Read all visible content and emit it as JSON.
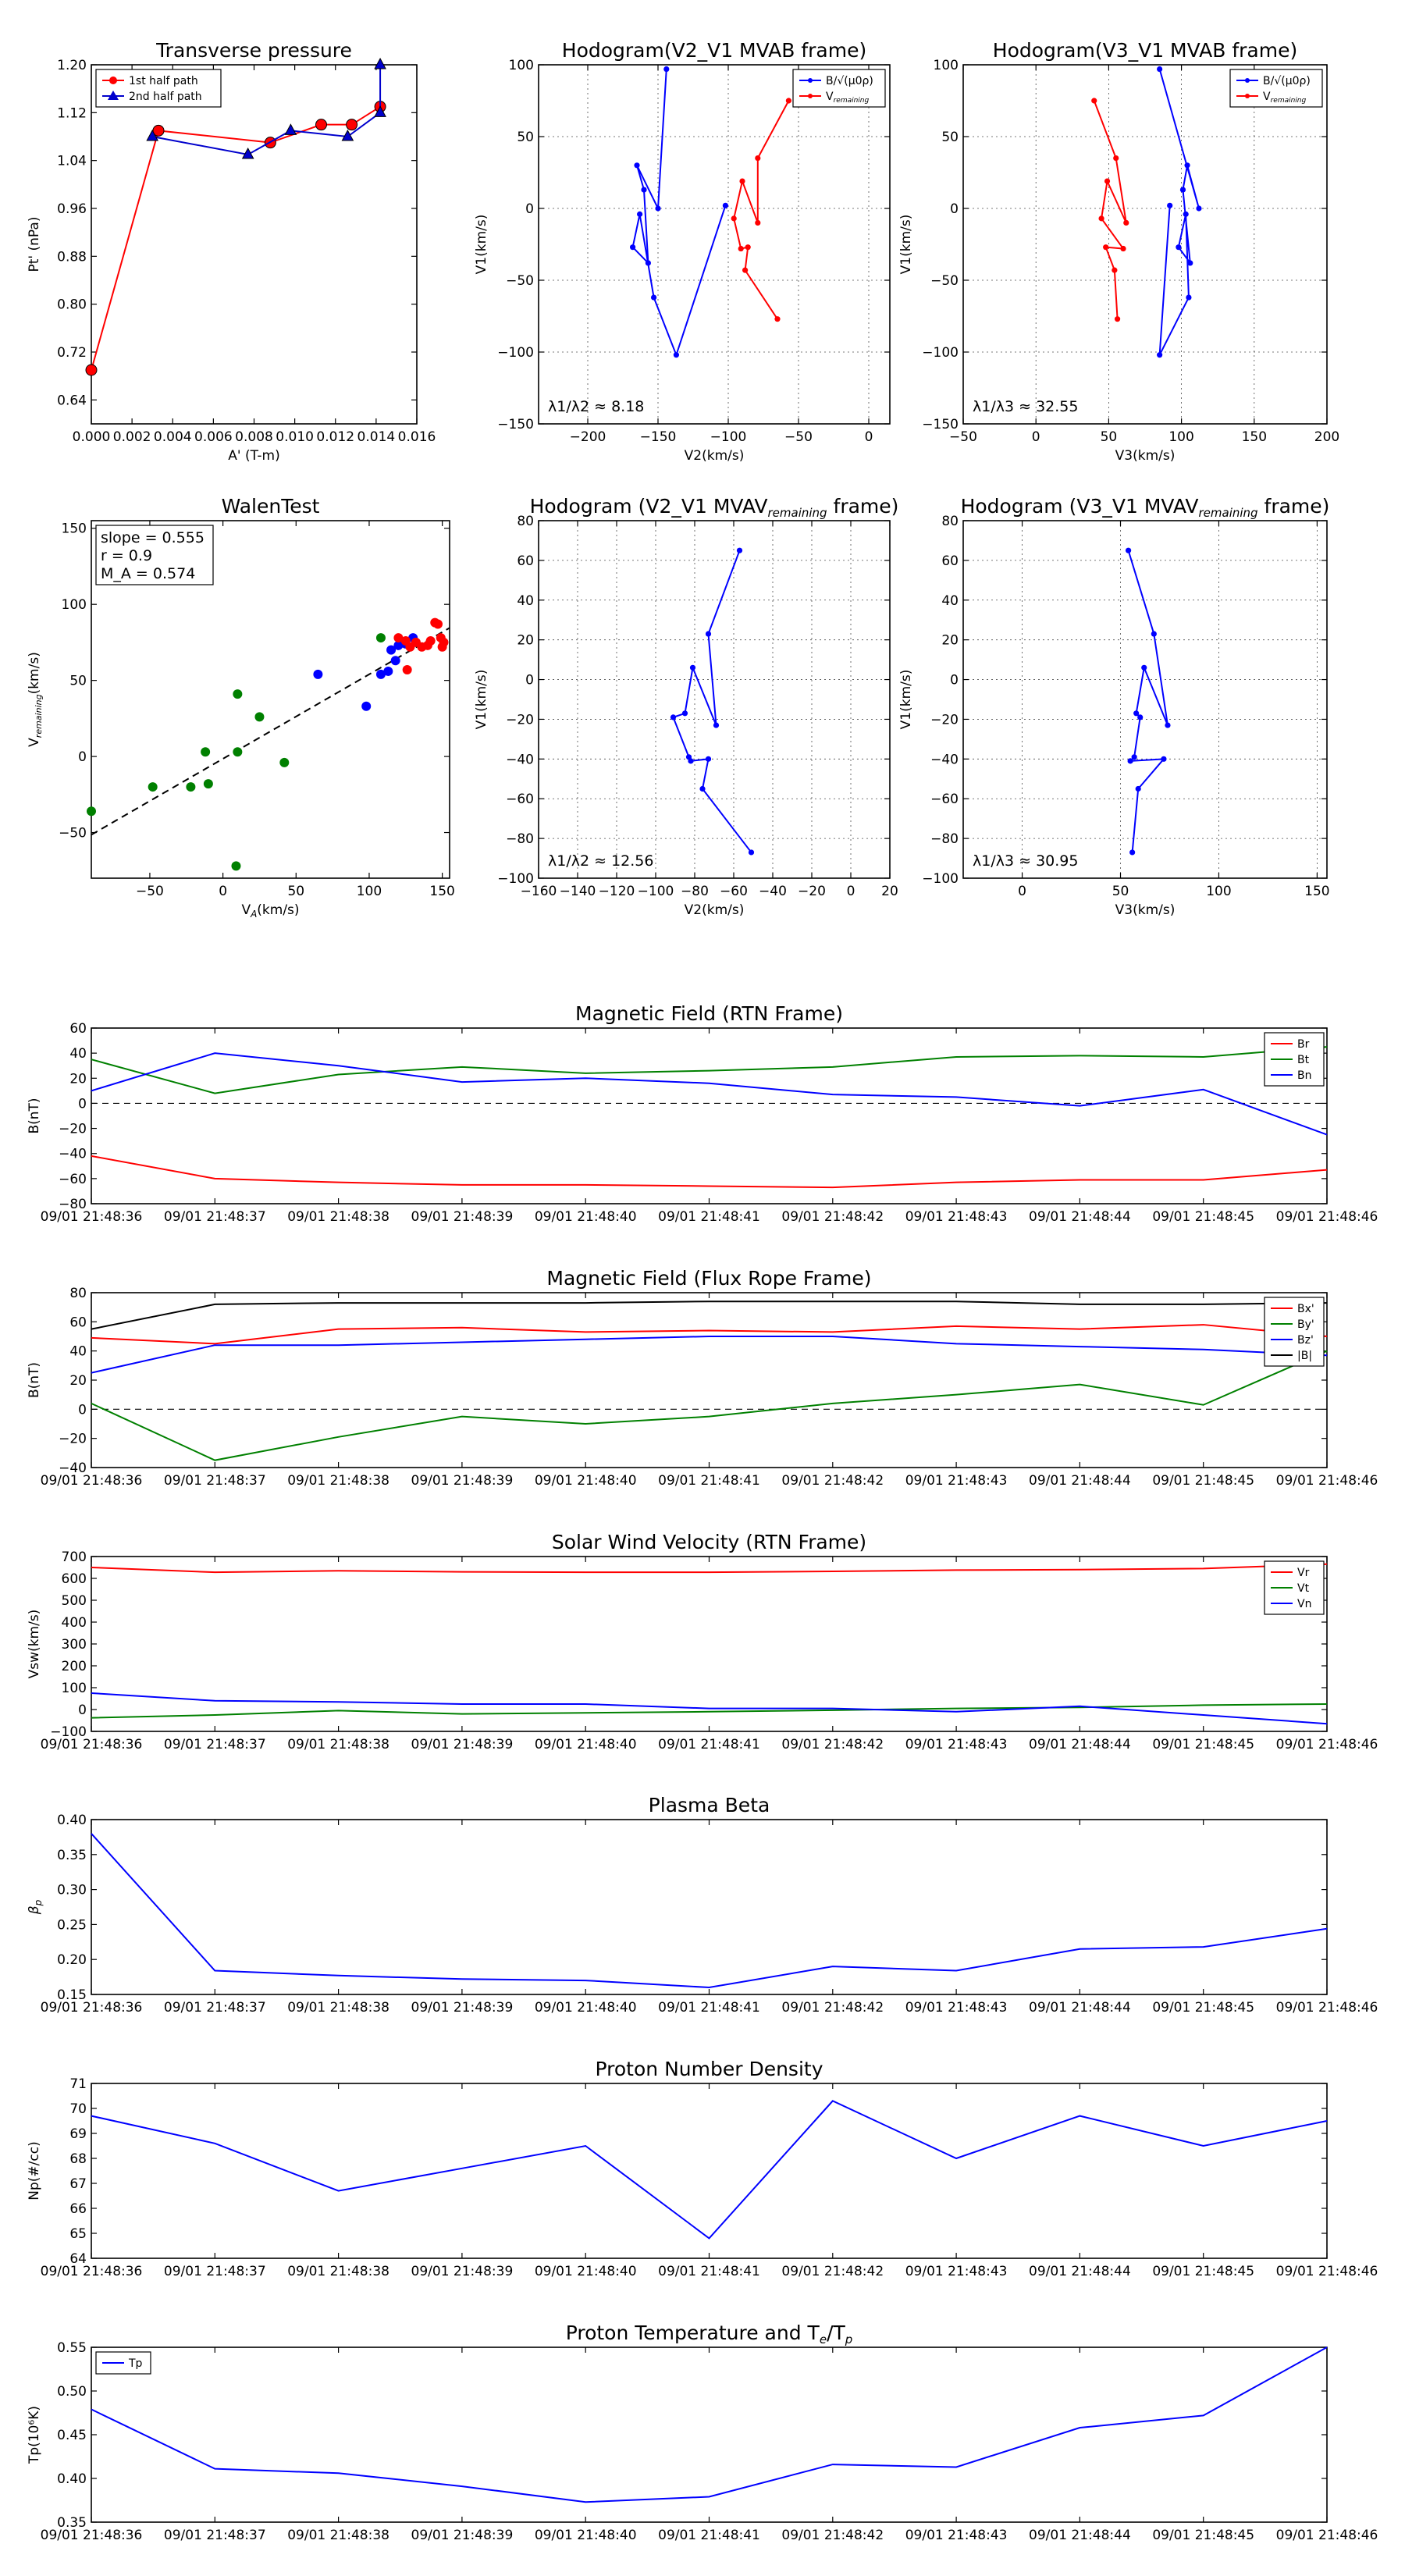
{
  "chart_data": [
    {
      "type": "line",
      "panel_id": "transverse",
      "title": "Transverse pressure",
      "xlabel": "A' (T-m)",
      "ylabel": "Pt' (nPa)",
      "xlim": [
        0,
        0.016
      ],
      "ylim": [
        0.6,
        1.2
      ],
      "xticks": [
        0,
        0.002,
        0.004,
        0.006,
        0.008,
        0.01,
        0.012,
        0.014,
        0.016
      ],
      "xtick_labels": [
        "0.000",
        "0.002",
        "0.004",
        "0.006",
        "0.008",
        "0.010",
        "0.012",
        "0.014",
        "0.016"
      ],
      "yticks": [
        0.64,
        0.72,
        0.8,
        0.88,
        0.96,
        1.04,
        1.12,
        1.2
      ],
      "ytick_labels": [
        "0.64",
        "0.72",
        "0.80",
        "0.88",
        "0.96",
        "1.04",
        "1.12",
        "1.20"
      ],
      "grid": false,
      "legend": "upper-left",
      "series": [
        {
          "name": "1st half path",
          "color": "#ff0000",
          "marker": "circle",
          "x": [
            0.0,
            0.0033,
            0.0088,
            0.0113,
            0.0128,
            0.0142
          ],
          "y": [
            0.69,
            1.09,
            1.07,
            1.1,
            1.1,
            1.13
          ]
        },
        {
          "name": "2nd half path",
          "color": "#0000cc",
          "marker": "triangle",
          "x": [
            0.0142,
            0.0142,
            0.0126,
            0.0098,
            0.0077,
            0.003
          ],
          "y": [
            1.2,
            1.12,
            1.08,
            1.09,
            1.05,
            1.08
          ]
        }
      ]
    },
    {
      "type": "line",
      "panel_id": "hodo_v2v1",
      "title": "Hodogram(V2_V1 MVAB frame)",
      "xlabel": "V2(km/s)",
      "ylabel": "V1(km/s)",
      "xlim": [
        -235,
        15
      ],
      "ylim": [
        -150,
        100
      ],
      "xticks": [
        -200,
        -150,
        -100,
        -50,
        0
      ],
      "xtick_labels": [
        "−200",
        "−150",
        "−100",
        "−50",
        "0"
      ],
      "yticks": [
        -150,
        -100,
        -50,
        0,
        50,
        100
      ],
      "ytick_labels": [
        "−150",
        "−100",
        "−50",
        "0",
        "50",
        "100"
      ],
      "grid": true,
      "legend": "upper-right",
      "annotation": "λ1/λ2 ≈ 8.18",
      "series": [
        {
          "name": "B/√(μ0ρ)",
          "color": "#0000ff",
          "x": [
            -144,
            -150,
            -165,
            -160,
            -157,
            -168,
            -163,
            -153,
            -137,
            -102
          ],
          "y": [
            97,
            0,
            30,
            13,
            -38,
            -27,
            -4,
            -62,
            -102,
            2
          ]
        },
        {
          "name": "V_remaining",
          "color": "#ff0000",
          "x": [
            -57,
            -79,
            -79,
            -90,
            -96,
            -91,
            -86,
            -88,
            -65
          ],
          "y": [
            75,
            35,
            -10,
            19,
            -7,
            -28,
            -27,
            -43,
            -77
          ]
        }
      ]
    },
    {
      "type": "line",
      "panel_id": "hodo_v3v1",
      "title": "Hodogram(V3_V1 MVAB frame)",
      "xlabel": "V3(km/s)",
      "ylabel": "V1(km/s)",
      "xlim": [
        -50,
        200
      ],
      "ylim": [
        -150,
        100
      ],
      "xticks": [
        -50,
        0,
        50,
        100,
        150,
        200
      ],
      "xtick_labels": [
        "−50",
        "0",
        "50",
        "100",
        "150",
        "200"
      ],
      "yticks": [
        -150,
        -100,
        -50,
        0,
        50,
        100
      ],
      "ytick_labels": [
        "−150",
        "−100",
        "−50",
        "0",
        "50",
        "100"
      ],
      "grid": true,
      "legend": "upper-right",
      "annotation": "λ1/λ3 ≈ 32.55",
      "series": [
        {
          "name": "B/√(μ0ρ)",
          "color": "#0000ff",
          "x": [
            85,
            112,
            104,
            101,
            106,
            98,
            103,
            105,
            85,
            92
          ],
          "y": [
            97,
            0,
            30,
            13,
            -38,
            -27,
            -4,
            -62,
            -102,
            2
          ]
        },
        {
          "name": "V_remaining",
          "color": "#ff0000",
          "x": [
            40,
            55,
            62,
            49,
            45,
            60,
            48,
            54,
            56
          ],
          "y": [
            75,
            35,
            -10,
            19,
            -7,
            -28,
            -27,
            -43,
            -77
          ]
        }
      ]
    },
    {
      "type": "scatter",
      "panel_id": "walen",
      "title": "WalenTest",
      "xlabel": "V_A(km/s)",
      "ylabel": "V_remaining(km/s)",
      "xlim": [
        -90,
        155
      ],
      "ylim": [
        -80,
        155
      ],
      "xticks": [
        -50,
        0,
        50,
        100,
        150
      ],
      "xtick_labels": [
        "−50",
        "0",
        "50",
        "100",
        "150"
      ],
      "yticks": [
        -50,
        0,
        50,
        100,
        150
      ],
      "ytick_labels": [
        "−50",
        "0",
        "50",
        "100",
        "150"
      ],
      "grid": false,
      "annotation_lines": [
        "slope = 0.555",
        "r = 0.9",
        "M_A = 0.574"
      ],
      "fit": {
        "slope": 0.555,
        "intercept": -1.5
      },
      "series": [
        {
          "name": "green",
          "color": "#008000",
          "x": [
            -90,
            -48,
            -22,
            -12,
            -10,
            10,
            10,
            25,
            42,
            9,
            108
          ],
          "y": [
            -36,
            -20,
            -20,
            3,
            -18,
            41,
            3,
            26,
            -4,
            -72,
            78
          ]
        },
        {
          "name": "blue",
          "color": "#0000ff",
          "x": [
            65,
            98,
            108,
            113,
            115,
            118,
            120,
            130,
            125
          ],
          "y": [
            54,
            33,
            54,
            56,
            70,
            63,
            73,
            78,
            74
          ]
        },
        {
          "name": "red",
          "color": "#ff0000",
          "x": [
            120,
            125,
            128,
            132,
            136,
            140,
            142,
            145,
            147,
            149,
            150,
            151,
            126
          ],
          "y": [
            78,
            76,
            72,
            75,
            72,
            73,
            76,
            88,
            87,
            78,
            72,
            75,
            57
          ]
        }
      ]
    },
    {
      "type": "line",
      "panel_id": "hodo_v2v1_rem",
      "title": "Hodogram (V2_V1 MVAV",
      "title_sub": "remaining",
      "title_tail": " frame)",
      "xlabel": "V2(km/s)",
      "ylabel": "V1(km/s)",
      "xlim": [
        -160,
        20
      ],
      "ylim": [
        -100,
        80
      ],
      "xticks": [
        -160,
        -140,
        -120,
        -100,
        -80,
        -60,
        -40,
        -20,
        0,
        20
      ],
      "xtick_labels": [
        "−160",
        "−140",
        "−120",
        "−100",
        "−80",
        "−60",
        "−40",
        "−20",
        "0",
        "20"
      ],
      "yticks": [
        -100,
        -80,
        -60,
        -40,
        -20,
        0,
        20,
        40,
        60,
        80
      ],
      "ytick_labels": [
        "−100",
        "−80",
        "−60",
        "−40",
        "−20",
        "0",
        "20",
        "40",
        "60",
        "80"
      ],
      "grid": true,
      "annotation": "λ1/λ2 ≈ 12.56",
      "series": [
        {
          "name": "",
          "color": "#0000ff",
          "x": [
            -57,
            -73,
            -69,
            -81,
            -85,
            -91,
            -83,
            -82,
            -73,
            -76,
            -51
          ],
          "y": [
            65,
            23,
            -23,
            6,
            -17,
            -19,
            -39,
            -41,
            -40,
            -55,
            -87
          ]
        }
      ]
    },
    {
      "type": "line",
      "panel_id": "hodo_v3v1_rem",
      "title": "Hodogram (V3_V1 MVAV",
      "title_sub": "remaining",
      "title_tail": " frame)",
      "xlabel": "V3(km/s)",
      "ylabel": "V1(km/s)",
      "xlim": [
        -30,
        155
      ],
      "ylim": [
        -100,
        80
      ],
      "xticks": [
        0,
        50,
        100,
        150
      ],
      "xtick_labels": [
        "0",
        "50",
        "100",
        "150"
      ],
      "yticks": [
        -100,
        -80,
        -60,
        -40,
        -20,
        0,
        20,
        40,
        60,
        80
      ],
      "ytick_labels": [
        "−100",
        "−80",
        "−60",
        "−40",
        "−20",
        "0",
        "20",
        "40",
        "60",
        "80"
      ],
      "grid": true,
      "annotation": "λ1/λ3 ≈ 30.95",
      "series": [
        {
          "name": "",
          "color": "#0000ff",
          "x": [
            54,
            67,
            74,
            62,
            58,
            60,
            57,
            55,
            72,
            59,
            56
          ],
          "y": [
            65,
            23,
            -23,
            6,
            -17,
            -19,
            -39,
            -41,
            -40,
            -55,
            -87
          ]
        }
      ]
    },
    {
      "type": "line",
      "panel_id": "magrtn",
      "title": "Magnetic Field (RTN Frame)",
      "xlabel": "",
      "ylabel": "B(nT)",
      "ylim": [
        -80,
        60
      ],
      "yticks": [
        -80,
        -60,
        -40,
        -20,
        0,
        20,
        40,
        60
      ],
      "ytick_labels": [
        "−80",
        "−60",
        "−40",
        "−20",
        "0",
        "20",
        "40",
        "60"
      ],
      "zero_line": true,
      "legend": "upper-right",
      "series": [
        {
          "name": "Br",
          "color": "#ff0000",
          "values": [
            -42,
            -60,
            -63,
            -65,
            -65,
            -66,
            -67,
            -63,
            -61,
            -61,
            -53
          ]
        },
        {
          "name": "Bt",
          "color": "#008000",
          "values": [
            35,
            8,
            23,
            29,
            24,
            26,
            29,
            37,
            38,
            37,
            45
          ]
        },
        {
          "name": "Bn",
          "color": "#0000ff",
          "values": [
            10,
            40,
            30,
            17,
            20,
            16,
            7,
            5,
            -2,
            11,
            -25
          ]
        }
      ]
    },
    {
      "type": "line",
      "panel_id": "magfr",
      "title": "Magnetic Field (Flux Rope Frame)",
      "xlabel": "",
      "ylabel": "B(nT)",
      "ylim": [
        -40,
        80
      ],
      "yticks": [
        -40,
        -20,
        0,
        20,
        40,
        60,
        80
      ],
      "ytick_labels": [
        "−40",
        "−20",
        "0",
        "20",
        "40",
        "60",
        "80"
      ],
      "zero_line": true,
      "legend": "upper-right",
      "series": [
        {
          "name": "Bx'",
          "color": "#ff0000",
          "values": [
            49,
            45,
            55,
            56,
            53,
            54,
            53,
            57,
            55,
            58,
            50
          ]
        },
        {
          "name": "By'",
          "color": "#008000",
          "values": [
            4,
            -35,
            -19,
            -5,
            -10,
            -5,
            4,
            10,
            17,
            3,
            40
          ]
        },
        {
          "name": "Bz'",
          "color": "#0000ff",
          "values": [
            25,
            44,
            44,
            46,
            48,
            50,
            50,
            45,
            43,
            41,
            37
          ]
        },
        {
          "name": "|B|",
          "color": "#000000",
          "values": [
            55,
            72,
            73,
            73,
            73,
            74,
            74,
            74,
            72,
            72,
            73
          ]
        }
      ]
    },
    {
      "type": "line",
      "panel_id": "vsw",
      "title": "Solar Wind Velocity (RTN Frame)",
      "xlabel": "",
      "ylabel": "Vsw(km/s)",
      "ylim": [
        -100,
        700
      ],
      "yticks": [
        -100,
        0,
        100,
        200,
        300,
        400,
        500,
        600,
        700
      ],
      "ytick_labels": [
        "−100",
        "0",
        "100",
        "200",
        "300",
        "400",
        "500",
        "600",
        "700"
      ],
      "legend": "upper-right",
      "series": [
        {
          "name": "Vr",
          "color": "#ff0000",
          "values": [
            650,
            628,
            635,
            630,
            628,
            628,
            632,
            638,
            640,
            645,
            665
          ]
        },
        {
          "name": "Vt",
          "color": "#008000",
          "values": [
            -38,
            -25,
            -5,
            -20,
            -15,
            -10,
            -3,
            5,
            10,
            20,
            25
          ]
        },
        {
          "name": "Vn",
          "color": "#0000ff",
          "values": [
            75,
            40,
            35,
            25,
            25,
            5,
            5,
            -10,
            15,
            -25,
            -65
          ]
        }
      ]
    },
    {
      "type": "line",
      "panel_id": "beta",
      "title": "Plasma Beta",
      "xlabel": "",
      "ylabel": "β_p",
      "ylim": [
        0.15,
        0.4
      ],
      "yticks": [
        0.15,
        0.2,
        0.25,
        0.3,
        0.35,
        0.4
      ],
      "ytick_labels": [
        "0.15",
        "0.20",
        "0.25",
        "0.30",
        "0.35",
        "0.40"
      ],
      "series": [
        {
          "name": "",
          "color": "#0000ff",
          "values": [
            0.38,
            0.184,
            0.177,
            0.172,
            0.17,
            0.16,
            0.19,
            0.184,
            0.215,
            0.218,
            0.244
          ]
        }
      ]
    },
    {
      "type": "line",
      "panel_id": "np",
      "title": "Proton Number Density",
      "xlabel": "",
      "ylabel": "Np(#/cc)",
      "ylim": [
        64,
        71
      ],
      "yticks": [
        64,
        65,
        66,
        67,
        68,
        69,
        70,
        71
      ],
      "ytick_labels": [
        "64",
        "65",
        "66",
        "67",
        "68",
        "69",
        "70",
        "71"
      ],
      "series": [
        {
          "name": "",
          "color": "#0000ff",
          "values": [
            69.7,
            68.6,
            66.7,
            67.6,
            68.5,
            64.8,
            70.3,
            68.0,
            69.7,
            68.5,
            69.5
          ]
        }
      ]
    },
    {
      "type": "line",
      "panel_id": "tp",
      "title": "Proton Temperature and T",
      "title_sub": "e",
      "title_mid": "/T",
      "title_sub2": "p",
      "xlabel": "",
      "ylabel": "Tp(10⁶K)",
      "ylim": [
        0.35,
        0.55
      ],
      "yticks": [
        0.35,
        0.4,
        0.45,
        0.5,
        0.55
      ],
      "ytick_labels": [
        "0.35",
        "0.40",
        "0.45",
        "0.50",
        "0.55"
      ],
      "legend": "upper-left",
      "series": [
        {
          "name": "Tp",
          "color": "#0000ff",
          "values": [
            0.479,
            0.411,
            0.406,
            0.391,
            0.373,
            0.379,
            0.416,
            0.413,
            0.458,
            0.472,
            0.55
          ]
        }
      ]
    }
  ],
  "time_axis": {
    "labels": [
      "09/01 21:48:36",
      "09/01 21:48:37",
      "09/01 21:48:38",
      "09/01 21:48:39",
      "09/01 21:48:40",
      "09/01 21:48:41",
      "09/01 21:48:42",
      "09/01 21:48:43",
      "09/01 21:48:44",
      "09/01 21:48:45",
      "09/01 21:48:46"
    ]
  }
}
